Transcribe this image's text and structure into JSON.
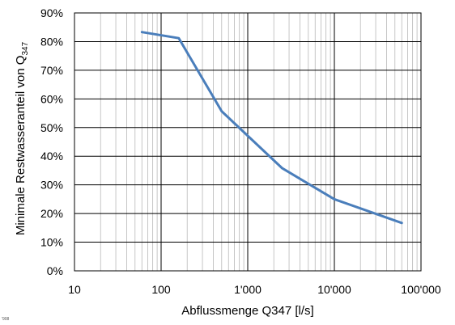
{
  "chart_data": {
    "type": "line",
    "title": "",
    "xlabel": "Abflussmenge Q347 [l/s]",
    "ylabel": "Minimale Restwasseranteil von Q",
    "ylabel_sub": "347",
    "x_scale": "log",
    "xlim": [
      10,
      100000
    ],
    "ylim": [
      0,
      90
    ],
    "x_ticks": [
      {
        "value": 10,
        "label": "10"
      },
      {
        "value": 100,
        "label": "100"
      },
      {
        "value": 1000,
        "label": "1'000"
      },
      {
        "value": 10000,
        "label": "10'000"
      },
      {
        "value": 100000,
        "label": "100'000"
      }
    ],
    "y_ticks": [
      {
        "value": 0,
        "label": "0%"
      },
      {
        "value": 10,
        "label": "10%"
      },
      {
        "value": 20,
        "label": "20%"
      },
      {
        "value": 30,
        "label": "30%"
      },
      {
        "value": 40,
        "label": "40%"
      },
      {
        "value": 50,
        "label": "50%"
      },
      {
        "value": 60,
        "label": "60%"
      },
      {
        "value": 70,
        "label": "70%"
      },
      {
        "value": 80,
        "label": "80%"
      },
      {
        "value": 90,
        "label": "90%"
      }
    ],
    "grid": true,
    "minor_grid_x": true,
    "legend": "none",
    "series": [
      {
        "color": "#4a7ebb",
        "x": [
          60,
          160,
          500,
          2500,
          10000,
          60000
        ],
        "y": [
          83.3,
          81.2,
          55.7,
          35.8,
          25.0,
          16.7
        ]
      }
    ]
  },
  "corner_text": "'908"
}
